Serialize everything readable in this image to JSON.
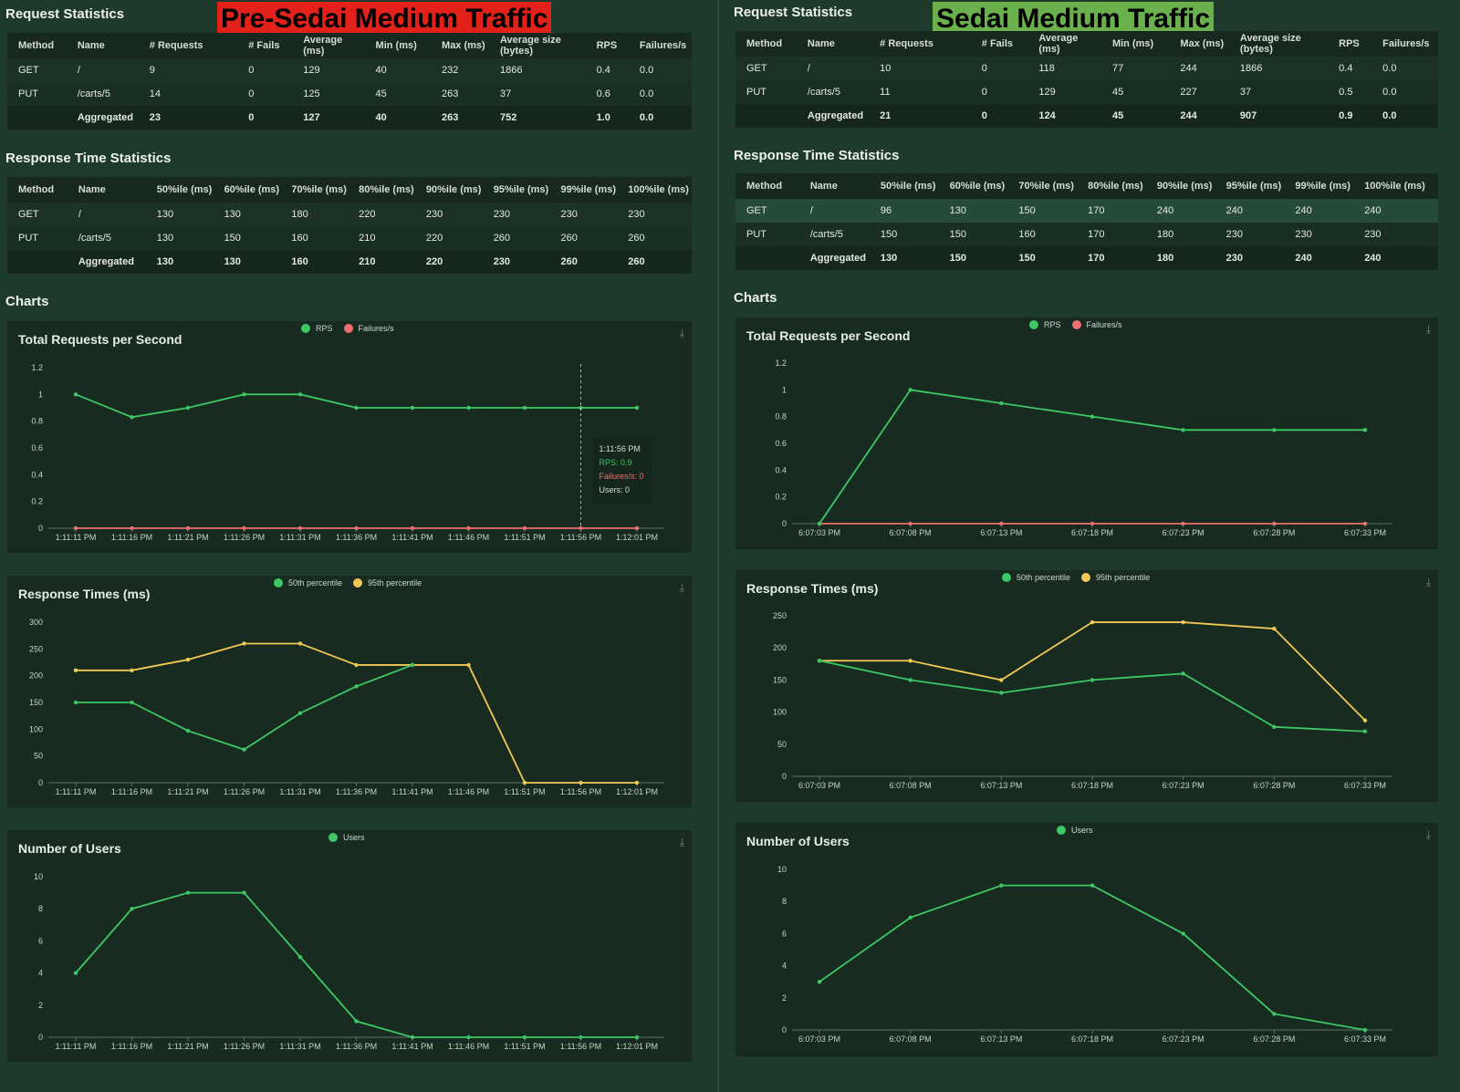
{
  "colors": {
    "rps": "#3ec765",
    "failures": "#f07070",
    "p50": "#3ec765",
    "p95": "#f2c955",
    "users": "#3ec765"
  },
  "left": {
    "banner": "Pre-Sedai Medium Traffic",
    "request_title": "Request Statistics",
    "request_headers": [
      "Method",
      "Name",
      "# Requests",
      "# Fails",
      "Average (ms)",
      "Min (ms)",
      "Max (ms)",
      "Average size (bytes)",
      "RPS",
      "Failures/s"
    ],
    "request_rows": [
      [
        "GET",
        "/",
        "9",
        "0",
        "129",
        "40",
        "232",
        "1866",
        "0.4",
        "0.0"
      ],
      [
        "PUT",
        "/carts/5",
        "14",
        "0",
        "125",
        "45",
        "263",
        "37",
        "0.6",
        "0.0"
      ],
      [
        "",
        "Aggregated",
        "23",
        "0",
        "127",
        "40",
        "263",
        "752",
        "1.0",
        "0.0"
      ]
    ],
    "response_title": "Response Time Statistics",
    "response_headers": [
      "Method",
      "Name",
      "50%ile (ms)",
      "60%ile (ms)",
      "70%ile (ms)",
      "80%ile (ms)",
      "90%ile (ms)",
      "95%ile (ms)",
      "99%ile (ms)",
      "100%ile (ms)"
    ],
    "response_rows": [
      [
        "GET",
        "/",
        "130",
        "130",
        "180",
        "220",
        "230",
        "230",
        "230",
        "230"
      ],
      [
        "PUT",
        "/carts/5",
        "130",
        "150",
        "160",
        "210",
        "220",
        "260",
        "260",
        "260"
      ],
      [
        "",
        "Aggregated",
        "130",
        "130",
        "160",
        "210",
        "220",
        "230",
        "260",
        "260"
      ]
    ],
    "charts_title": "Charts",
    "tooltip": {
      "time": "1:11:56 PM",
      "rps": "RPS: 0.9",
      "failures": "Failures/s: 0",
      "users": "Users: 0"
    }
  },
  "right": {
    "banner": "Sedai Medium Traffic",
    "request_title": "Request Statistics",
    "request_headers": [
      "Method",
      "Name",
      "# Requests",
      "# Fails",
      "Average (ms)",
      "Min (ms)",
      "Max (ms)",
      "Average size (bytes)",
      "RPS",
      "Failures/s"
    ],
    "request_rows": [
      [
        "GET",
        "/",
        "10",
        "0",
        "118",
        "77",
        "244",
        "1866",
        "0.4",
        "0.0"
      ],
      [
        "PUT",
        "/carts/5",
        "11",
        "0",
        "129",
        "45",
        "227",
        "37",
        "0.5",
        "0.0"
      ],
      [
        "",
        "Aggregated",
        "21",
        "0",
        "124",
        "45",
        "244",
        "907",
        "0.9",
        "0.0"
      ]
    ],
    "response_title": "Response Time Statistics",
    "response_headers": [
      "Method",
      "Name",
      "50%ile (ms)",
      "60%ile (ms)",
      "70%ile (ms)",
      "80%ile (ms)",
      "90%ile (ms)",
      "95%ile (ms)",
      "99%ile (ms)",
      "100%ile (ms)"
    ],
    "response_rows": [
      [
        "GET",
        "/",
        "96",
        "130",
        "150",
        "170",
        "240",
        "240",
        "240",
        "240"
      ],
      [
        "PUT",
        "/carts/5",
        "150",
        "150",
        "160",
        "170",
        "180",
        "230",
        "230",
        "230"
      ],
      [
        "",
        "Aggregated",
        "130",
        "150",
        "150",
        "170",
        "180",
        "230",
        "240",
        "240"
      ]
    ],
    "charts_title": "Charts"
  },
  "chart_data": [
    {
      "id": "left-rps",
      "type": "line",
      "title": "Total Requests per Second",
      "x": [
        "1:11:11 PM",
        "1:11:16 PM",
        "1:11:21 PM",
        "1:11:26 PM",
        "1:11:31 PM",
        "1:11:36 PM",
        "1:11:41 PM",
        "1:11:46 PM",
        "1:11:51 PM",
        "1:11:56 PM",
        "1:12:01 PM"
      ],
      "yticks": [
        "0",
        "0.2",
        "0.4",
        "0.6",
        "0.8",
        "1",
        "1.2"
      ],
      "ylim": [
        0,
        1.2
      ],
      "series": [
        {
          "name": "RPS",
          "color": "#3ec765",
          "values": [
            1,
            0.83,
            0.9,
            1,
            1,
            0.9,
            0.9,
            0.9,
            0.9,
            0.9,
            0.9
          ]
        },
        {
          "name": "Failures/s",
          "color": "#f07070",
          "values": [
            0,
            0,
            0,
            0,
            0,
            0,
            0,
            0,
            0,
            0,
            0
          ]
        }
      ]
    },
    {
      "id": "left-rt",
      "type": "line",
      "title": "Response Times (ms)",
      "x": [
        "1:11:11 PM",
        "1:11:16 PM",
        "1:11:21 PM",
        "1:11:26 PM",
        "1:11:31 PM",
        "1:11:36 PM",
        "1:11:41 PM",
        "1:11:46 PM",
        "1:11:51 PM",
        "1:11:56 PM",
        "1:12:01 PM"
      ],
      "yticks": [
        "0",
        "50",
        "100",
        "150",
        "200",
        "250",
        "300"
      ],
      "ylim": [
        0,
        300
      ],
      "series": [
        {
          "name": "50th percentile",
          "color": "#3ec765",
          "values": [
            150,
            150,
            97,
            62,
            130,
            180,
            220,
            null,
            null,
            null,
            null
          ]
        },
        {
          "name": "95th percentile",
          "color": "#f2c955",
          "values": [
            210,
            210,
            230,
            260,
            260,
            220,
            220,
            220,
            0,
            0,
            0
          ]
        }
      ]
    },
    {
      "id": "left-users",
      "type": "line",
      "title": "Number of Users",
      "x": [
        "1:11:11 PM",
        "1:11:16 PM",
        "1:11:21 PM",
        "1:11:26 PM",
        "1:11:31 PM",
        "1:11:36 PM",
        "1:11:41 PM",
        "1:11:46 PM",
        "1:11:51 PM",
        "1:11:56 PM",
        "1:12:01 PM"
      ],
      "yticks": [
        "0",
        "2",
        "4",
        "6",
        "8",
        "10"
      ],
      "ylim": [
        0,
        10
      ],
      "series": [
        {
          "name": "Users",
          "color": "#3ec765",
          "values": [
            4,
            8,
            9,
            9,
            5,
            1,
            0,
            0,
            0,
            0,
            0
          ]
        }
      ]
    },
    {
      "id": "right-rps",
      "type": "line",
      "title": "Total Requests per Second",
      "x": [
        "6:07:03 PM",
        "6:07:08 PM",
        "6:07:13 PM",
        "6:07:18 PM",
        "6:07:23 PM",
        "6:07:28 PM",
        "6:07:33 PM"
      ],
      "yticks": [
        "0",
        "0.2",
        "0.4",
        "0.6",
        "0.8",
        "1",
        "1.2"
      ],
      "ylim": [
        0,
        1.2
      ],
      "series": [
        {
          "name": "RPS",
          "color": "#3ec765",
          "values": [
            0,
            1,
            0.9,
            0.8,
            0.7,
            0.7,
            0.7
          ]
        },
        {
          "name": "Failures/s",
          "color": "#f07070",
          "values": [
            0,
            0,
            0,
            0,
            0,
            0,
            0
          ]
        }
      ]
    },
    {
      "id": "right-rt",
      "type": "line",
      "title": "Response Times (ms)",
      "x": [
        "6:07:03 PM",
        "6:07:08 PM",
        "6:07:13 PM",
        "6:07:18 PM",
        "6:07:23 PM",
        "6:07:28 PM",
        "6:07:33 PM"
      ],
      "yticks": [
        "0",
        "50",
        "100",
        "150",
        "200",
        "250"
      ],
      "ylim": [
        0,
        250
      ],
      "series": [
        {
          "name": "50th percentile",
          "color": "#3ec765",
          "values": [
            180,
            150,
            130,
            150,
            160,
            77,
            70
          ]
        },
        {
          "name": "95th percentile",
          "color": "#f2c955",
          "values": [
            180,
            180,
            150,
            240,
            240,
            230,
            87
          ]
        }
      ]
    },
    {
      "id": "right-users",
      "type": "line",
      "title": "Number of Users",
      "x": [
        "6:07:03 PM",
        "6:07:08 PM",
        "6:07:13 PM",
        "6:07:18 PM",
        "6:07:23 PM",
        "6:07:28 PM",
        "6:07:33 PM"
      ],
      "yticks": [
        "0",
        "2",
        "4",
        "6",
        "8",
        "10"
      ],
      "ylim": [
        0,
        10
      ],
      "series": [
        {
          "name": "Users",
          "color": "#3ec765",
          "values": [
            3,
            7,
            9,
            9,
            6,
            1,
            0
          ]
        }
      ]
    }
  ]
}
